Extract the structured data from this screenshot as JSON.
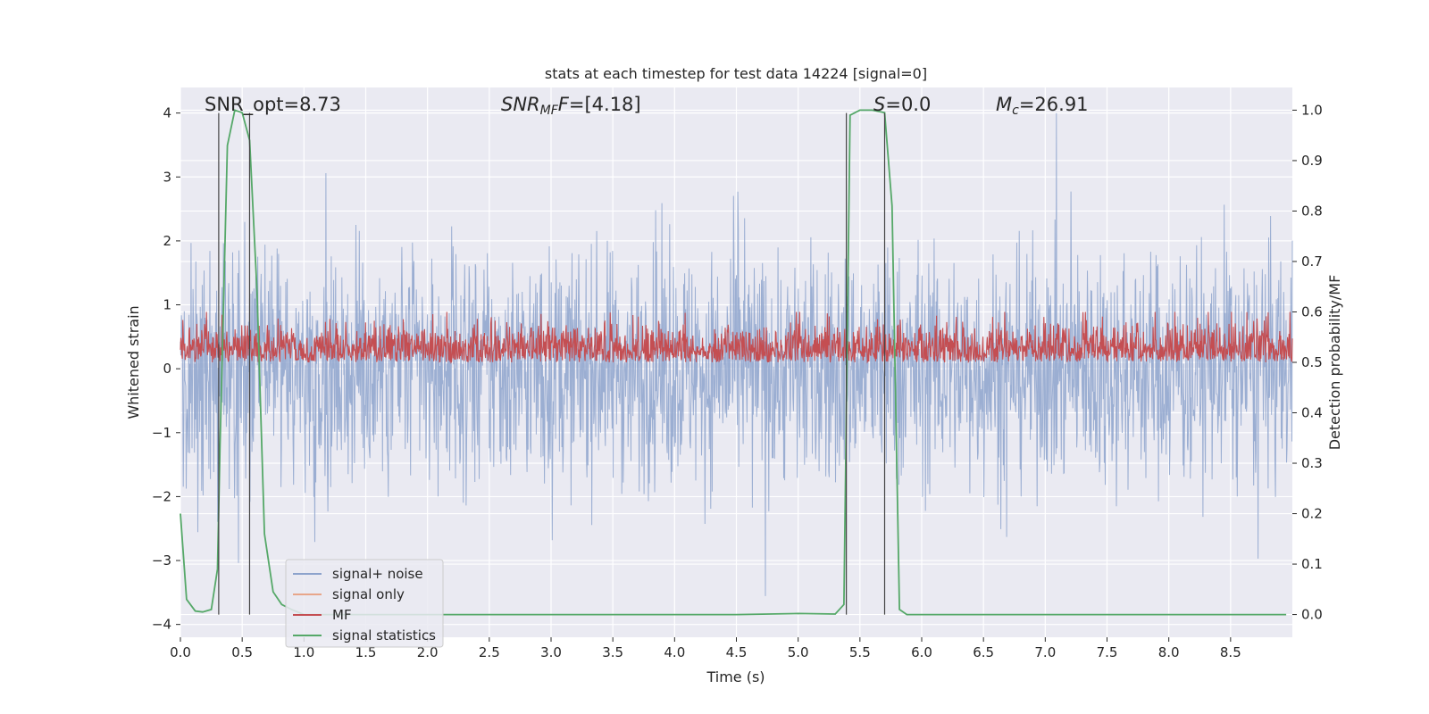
{
  "chart_data": {
    "type": "line",
    "title": "stats at each timestep for test data 14224 [signal=0]",
    "xlabel": "Time (s)",
    "ylabel_left": "Whitened strain",
    "ylabel_right": "Detection probability/MF",
    "xlim": [
      0.0,
      9.0
    ],
    "ylim_left": [
      -4.2,
      4.4
    ],
    "ylim_right": [
      -0.045,
      1.045
    ],
    "x_ticks": [
      "0.0",
      "0.5",
      "1.0",
      "1.5",
      "2.0",
      "2.5",
      "3.0",
      "3.5",
      "4.0",
      "4.5",
      "5.0",
      "5.5",
      "6.0",
      "6.5",
      "7.0",
      "7.5",
      "8.0",
      "8.5"
    ],
    "y_ticks_left": [
      "−4",
      "−3",
      "−2",
      "−1",
      "0",
      "1",
      "2",
      "3",
      "4"
    ],
    "y_ticks_right": [
      "0.0",
      "0.1",
      "0.2",
      "0.3",
      "0.4",
      "0.5",
      "0.6",
      "0.7",
      "0.8",
      "0.9",
      "1.0"
    ],
    "annotations": {
      "snr_opt": "SNR_opt=8.73",
      "snr_mf_name": "SNR",
      "snr_mf_sub": "MF",
      "snr_mf_value": "=[4.18]",
      "s_name": "S",
      "s_value": "=0.0",
      "mc_name": "M",
      "mc_sub": "c",
      "mc_value": "=26.91"
    },
    "vertical_lines_x": [
      0.31,
      0.56,
      5.39,
      5.7
    ],
    "series": [
      {
        "name": "signal+ noise",
        "color": "#8da3cc",
        "description_range": [
          -3.9,
          4.0
        ],
        "typical_band": [
          -1.6,
          1.7
        ]
      },
      {
        "name": "signal only",
        "color": "#e8a68a",
        "values": []
      },
      {
        "name": "MF",
        "color": "#c44e52",
        "typical_band_right_axis": [
          0.5,
          0.6
        ]
      },
      {
        "name": "signal statistics",
        "color": "#55a868",
        "x": [
          0.0,
          0.05,
          0.12,
          0.18,
          0.25,
          0.3,
          0.32,
          0.38,
          0.44,
          0.5,
          0.56,
          0.62,
          0.68,
          0.75,
          0.82,
          0.9,
          1.0,
          1.5,
          2.0,
          3.0,
          4.0,
          4.5,
          5.0,
          5.3,
          5.37,
          5.42,
          5.5,
          5.6,
          5.7,
          5.76,
          5.82,
          5.88,
          6.0,
          7.0,
          8.0,
          8.95
        ],
        "y": [
          0.2,
          0.03,
          0.007,
          0.005,
          0.01,
          0.09,
          0.33,
          0.93,
          1.0,
          0.995,
          0.94,
          0.64,
          0.16,
          0.045,
          0.02,
          0.01,
          0.0,
          0.0,
          0.0,
          0.0,
          0.0,
          0.0,
          0.002,
          0.001,
          0.02,
          0.99,
          1.0,
          1.0,
          0.995,
          0.81,
          0.01,
          0.0,
          0.0,
          0.0,
          0.0,
          0.0
        ]
      }
    ],
    "legend": {
      "placement": "lower-left",
      "entries": [
        {
          "label": "signal+ noise",
          "color": "#8da3cc"
        },
        {
          "label": "signal only",
          "color": "#e8a68a"
        },
        {
          "label": "MF",
          "color": "#c44e52"
        },
        {
          "label": "signal statistics",
          "color": "#55a868"
        }
      ]
    },
    "grid": true,
    "background": "#eaeaf2"
  }
}
